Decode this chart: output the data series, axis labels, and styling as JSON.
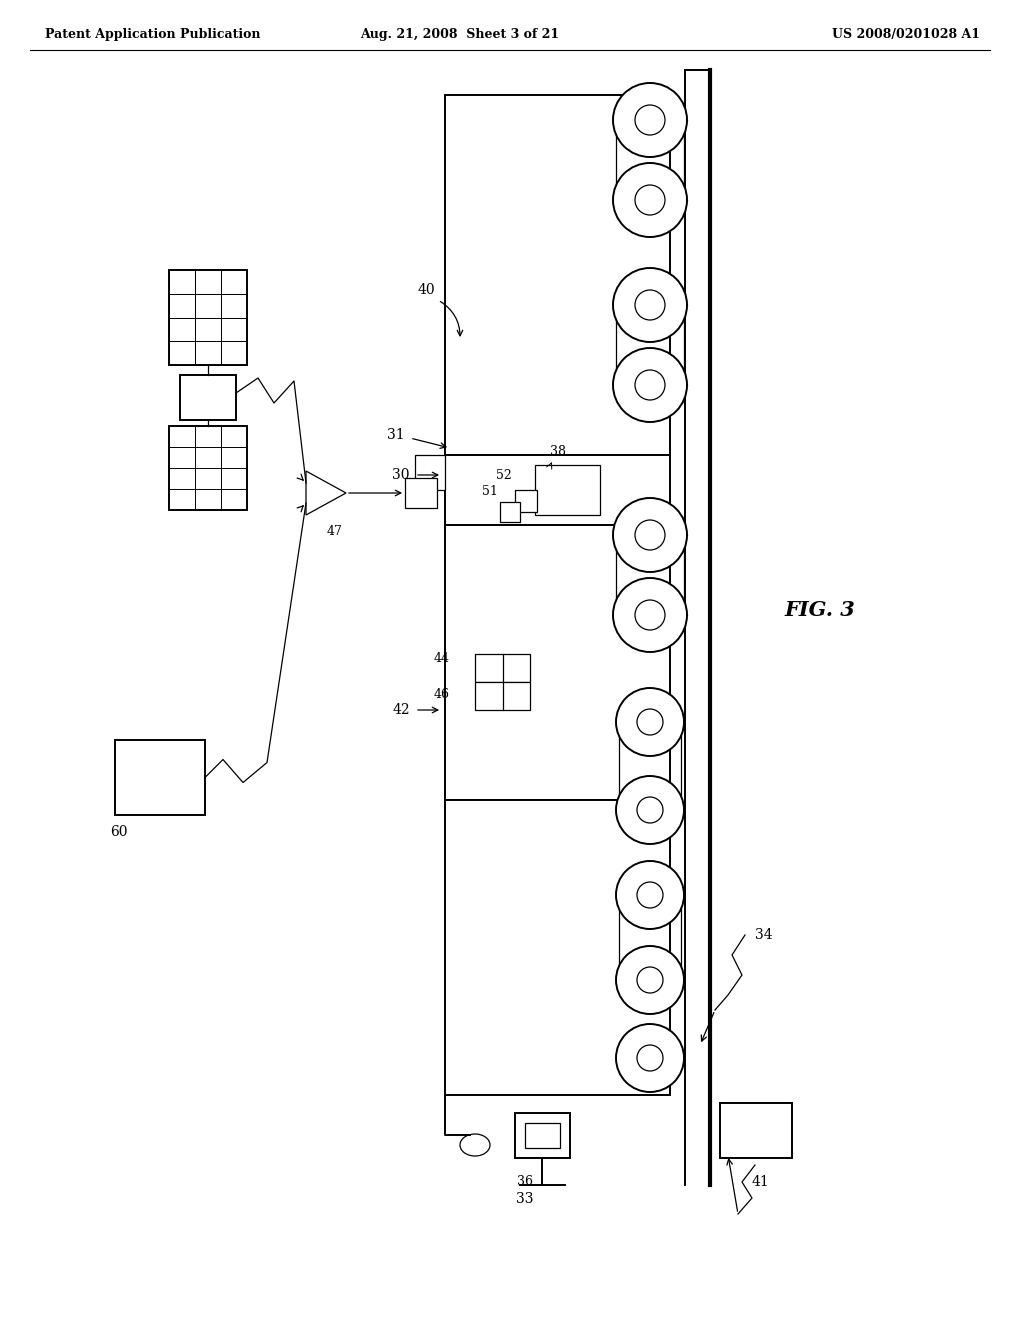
{
  "bg_color": "#ffffff",
  "header_left": "Patent Application Publication",
  "header_mid": "Aug. 21, 2008  Sheet 3 of 21",
  "header_right": "US 2008/0201028 A1",
  "fig_label": "FIG. 3"
}
